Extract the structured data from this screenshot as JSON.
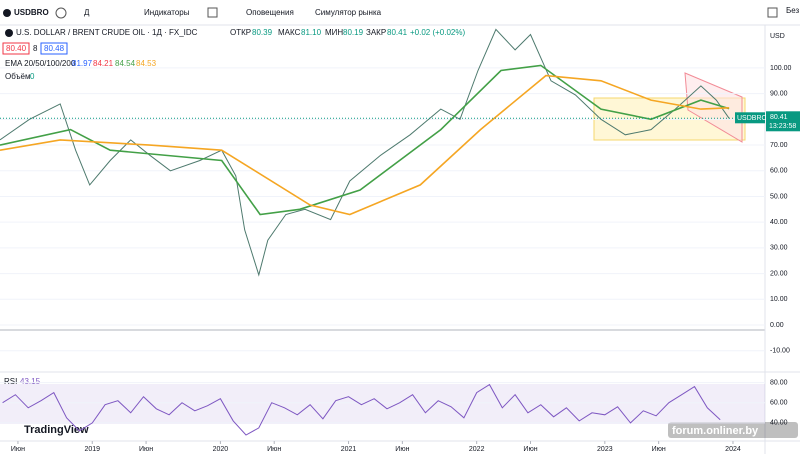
{
  "toolbar": {
    "symbol": "USDBRO",
    "interval": "Д",
    "indicators": "Индикаторы",
    "alerts": "Оповещения",
    "replay": "Симулятор рынка",
    "right": "Без"
  },
  "legend": {
    "title": "U.S. DOLLAR / BRENT CRUDE OIL · 1Д · FX_IDC",
    "open_label": "ОТКР",
    "open": "80.39",
    "high_label": "МАКС",
    "high": "81.10",
    "low_label": "МИН",
    "low": "80.19",
    "close_label": "ЗАКР",
    "close": "80.41",
    "change": "+0.02 (+0.02%)",
    "bid": "80.40",
    "spread": "8",
    "ask": "80.48",
    "ema_label": "EMA 20/50/100/200",
    "ema_values": [
      "81.97",
      "84.21",
      "84.54",
      "84.53"
    ],
    "volume_label": "Объём",
    "volume": "0"
  },
  "watermark": "TradingView",
  "site": "forum.onliner.by",
  "chart_data": [
    {
      "type": "line",
      "currency": "USD",
      "symbol_tag": "USDBRO",
      "last_price": {
        "value": 80.41,
        "label": "80.41"
      },
      "timer": "13:23:58",
      "ylim": [
        -17.5,
        116.7
      ],
      "yticks": [
        {
          "value": 100,
          "label": "100.00"
        },
        {
          "value": 90,
          "label": "90.00"
        },
        {
          "value": 80,
          "label": "80.00"
        },
        {
          "value": 70,
          "label": "70.00"
        },
        {
          "value": 60,
          "label": "60.00"
        },
        {
          "value": 50,
          "label": "50.00"
        },
        {
          "value": 40,
          "label": "40.00"
        },
        {
          "value": 30,
          "label": "30.00"
        },
        {
          "value": 20,
          "label": "20.00"
        },
        {
          "value": 10,
          "label": "10.00"
        },
        {
          "value": 0,
          "label": "0.00"
        },
        {
          "value": -10,
          "label": "-10.00"
        }
      ],
      "xlim": [
        2018.28,
        2024.25
      ],
      "xticks": [
        {
          "value": 2018.42,
          "label": "Июн"
        },
        {
          "value": 2019,
          "label": "2019"
        },
        {
          "value": 2019.42,
          "label": "Июн"
        },
        {
          "value": 2020,
          "label": "2020"
        },
        {
          "value": 2020.42,
          "label": "Июн"
        },
        {
          "value": 2021,
          "label": "2021"
        },
        {
          "value": 2021.42,
          "label": "Июн"
        },
        {
          "value": 2022,
          "label": "2022"
        },
        {
          "value": 2022.42,
          "label": "Июн"
        },
        {
          "value": 2023,
          "label": "2023"
        },
        {
          "value": 2023.42,
          "label": "Июн"
        },
        {
          "value": 2024,
          "label": "2024"
        }
      ],
      "series": [
        {
          "name": "USDBRO",
          "color": "#4e7a6e",
          "x": [
            2018.28,
            2018.51,
            2018.75,
            2018.87,
            2018.98,
            2019.14,
            2019.3,
            2019.45,
            2019.61,
            2019.84,
            2020.01,
            2020.12,
            2020.19,
            2020.3,
            2020.37,
            2020.51,
            2020.66,
            2020.86,
            2021.01,
            2021.25,
            2021.48,
            2021.72,
            2021.87,
            2022.01,
            2022.15,
            2022.3,
            2022.42,
            2022.58,
            2022.77,
            2022.97,
            2023.16,
            2023.36,
            2023.55,
            2023.75,
            2023.87,
            2023.97
          ],
          "values": [
            72,
            80,
            86,
            68,
            54.5,
            64,
            72,
            66,
            60,
            64,
            68,
            58,
            37,
            19.5,
            33,
            43,
            45,
            41,
            56,
            66,
            74,
            84,
            80,
            99,
            115,
            107,
            113,
            95,
            89.5,
            80,
            74,
            76,
            84,
            93,
            87.5,
            80.4
          ]
        },
        {
          "name": "EMA 50",
          "color": "#43a047",
          "x": [
            2018.28,
            2018.83,
            2019.14,
            2020.01,
            2020.31,
            2020.62,
            2021.09,
            2021.72,
            2022.19,
            2022.5,
            2022.97,
            2023.36,
            2023.75,
            2023.97
          ],
          "values": [
            70,
            76,
            68,
            64,
            43,
            45,
            52.5,
            76,
            99,
            101,
            84,
            80,
            87.5,
            84.2
          ]
        },
        {
          "name": "EMA 200",
          "color": "#f5a623",
          "x": [
            2018.28,
            2018.75,
            2019.45,
            2020.01,
            2020.7,
            2021.01,
            2021.56,
            2022.03,
            2022.54,
            2022.97,
            2023.36,
            2023.75,
            2023.97
          ],
          "values": [
            68,
            72,
            70,
            68,
            46.7,
            43,
            54.5,
            76,
            97,
            95,
            87.5,
            84,
            84.5
          ]
        }
      ]
    },
    {
      "type": "line",
      "label": "RSI",
      "value": "43.15",
      "ylim": [
        22,
        90.5
      ],
      "xlim": [
        2018.28,
        2024.25
      ],
      "yticks": [
        {
          "value": 80,
          "label": "80.00"
        },
        {
          "value": 60,
          "label": "60.00"
        },
        {
          "value": 40,
          "label": "40.00"
        }
      ],
      "series": [
        {
          "name": "RSI",
          "color": "#7e57c2",
          "x": [
            2018.3,
            2018.4,
            2018.5,
            2018.6,
            2018.7,
            2018.8,
            2018.9,
            2019.0,
            2019.1,
            2019.2,
            2019.3,
            2019.4,
            2019.5,
            2019.6,
            2019.7,
            2019.8,
            2019.9,
            2020.0,
            2020.1,
            2020.2,
            2020.3,
            2020.4,
            2020.5,
            2020.6,
            2020.7,
            2020.8,
            2020.9,
            2021.0,
            2021.1,
            2021.2,
            2021.3,
            2021.4,
            2021.5,
            2021.6,
            2021.7,
            2021.8,
            2021.9,
            2022.0,
            2022.1,
            2022.2,
            2022.3,
            2022.4,
            2022.5,
            2022.6,
            2022.7,
            2022.8,
            2022.9,
            2023.0,
            2023.1,
            2023.2,
            2023.3,
            2023.4,
            2023.5,
            2023.6,
            2023.7,
            2023.8,
            2023.9
          ],
          "values": [
            60,
            68,
            55,
            62,
            70,
            45,
            32,
            40,
            58,
            62,
            50,
            66,
            54,
            48,
            60,
            52,
            57,
            64,
            42,
            28,
            35,
            60,
            55,
            48,
            58,
            44,
            62,
            66,
            58,
            64,
            54,
            60,
            68,
            50,
            62,
            56,
            45,
            70,
            78,
            55,
            68,
            50,
            58,
            46,
            55,
            42,
            50,
            48,
            56,
            40,
            52,
            47,
            60,
            68,
            76,
            55,
            43
          ]
        }
      ]
    }
  ]
}
